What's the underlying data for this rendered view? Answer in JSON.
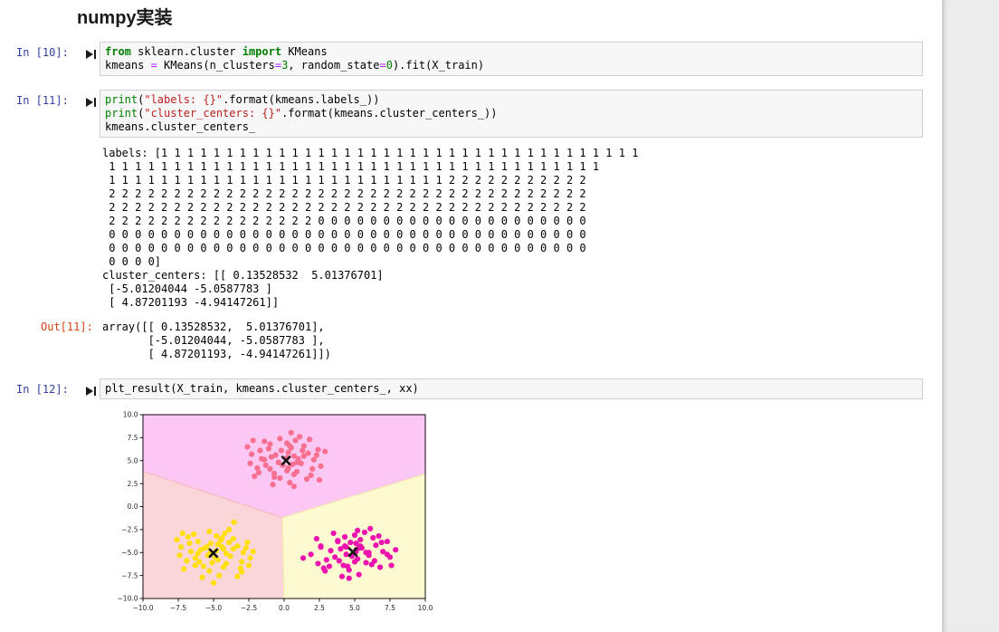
{
  "page": {
    "heading": "numpy実装"
  },
  "cells": [
    {
      "prompt": "In [10]:",
      "lines": [
        [
          [
            "kw",
            "from"
          ],
          [
            "pl",
            " sklearn.cluster "
          ],
          [
            "kw",
            "import"
          ],
          [
            "pl",
            " KMeans"
          ]
        ],
        [
          [
            "pl",
            "kmeans "
          ],
          [
            "op",
            "="
          ],
          [
            "pl",
            " KMeans(n_clusters"
          ],
          [
            "op",
            "="
          ],
          [
            "num",
            "3"
          ],
          [
            "pl",
            ", random_state"
          ],
          [
            "op",
            "="
          ],
          [
            "num",
            "0"
          ],
          [
            "pl",
            ").fit(X_train)"
          ]
        ]
      ]
    },
    {
      "prompt": "In [11]:",
      "lines": [
        [
          [
            "bi",
            "print"
          ],
          [
            "pl",
            "("
          ],
          [
            "str",
            "\"labels: {}\""
          ],
          [
            "pl",
            ".format(kmeans.labels_))"
          ]
        ],
        [
          [
            "bi",
            "print"
          ],
          [
            "pl",
            "("
          ],
          [
            "str",
            "\"cluster_centers: {}\""
          ],
          [
            "pl",
            ".format(kmeans.cluster_centers_))"
          ]
        ],
        [
          [
            "pl",
            "kmeans.cluster_centers_"
          ]
        ]
      ]
    },
    {
      "prompt": "In [12]:",
      "lines": [
        [
          [
            "pl",
            "plt_result(X_train, kmeans.cluster_centers_, xx)"
          ]
        ]
      ]
    }
  ],
  "outputs": {
    "stream": [
      "labels: [1 1 1 1 1 1 1 1 1 1 1 1 1 1 1 1 1 1 1 1 1 1 1 1 1 1 1 1 1 1 1 1 1 1 1 1 1",
      " 1 1 1 1 1 1 1 1 1 1 1 1 1 1 1 1 1 1 1 1 1 1 1 1 1 1 1 1 1 1 1 1 1 1 1 1 1 1",
      " 1 1 1 1 1 1 1 1 1 1 1 1 1 1 1 1 1 1 1 1 1 1 1 1 1 1 2 2 2 2 2 2 2 2 2 2 2",
      " 2 2 2 2 2 2 2 2 2 2 2 2 2 2 2 2 2 2 2 2 2 2 2 2 2 2 2 2 2 2 2 2 2 2 2 2 2",
      " 2 2 2 2 2 2 2 2 2 2 2 2 2 2 2 2 2 2 2 2 2 2 2 2 2 2 2 2 2 2 2 2 2 2 2 2 2",
      " 2 2 2 2 2 2 2 2 2 2 2 2 2 2 2 2 0 0 0 0 0 0 0 0 0 0 0 0 0 0 0 0 0 0 0 0 0",
      " 0 0 0 0 0 0 0 0 0 0 0 0 0 0 0 0 0 0 0 0 0 0 0 0 0 0 0 0 0 0 0 0 0 0 0 0 0",
      " 0 0 0 0 0 0 0 0 0 0 0 0 0 0 0 0 0 0 0 0 0 0 0 0 0 0 0 0 0 0 0 0 0 0 0 0 0",
      " 0 0 0 0]",
      "cluster_centers: [[ 0.13528532  5.01376701]",
      " [-5.01204044 -5.0587783 ]",
      " [ 4.87201193 -4.94147261]]"
    ],
    "out_prompt": "Out[11]:",
    "out_value": [
      "array([[ 0.13528532,  5.01376701],",
      "       [-5.01204044, -5.0587783 ],",
      "       [ 4.87201193, -4.94147261]])"
    ]
  },
  "chart_data": {
    "type": "scatter",
    "xlim": [
      -10,
      10
    ],
    "ylim": [
      -10,
      10
    ],
    "xticks": [
      -10,
      -7.5,
      -5,
      -2.5,
      0,
      2.5,
      5,
      7.5,
      10
    ],
    "yticks": [
      -10,
      -7.5,
      -5,
      -2.5,
      0,
      2.5,
      5,
      7.5,
      10
    ],
    "xtick_labels": [
      "−10.0",
      "−7.5",
      "−5.0",
      "−2.5",
      "0.0",
      "2.5",
      "5.0",
      "7.5",
      "10.0"
    ],
    "ytick_labels": [
      "−10.0",
      "−7.5",
      "−5.0",
      "−2.5",
      "0.0",
      "2.5",
      "5.0",
      "7.5",
      "10.0"
    ],
    "grid": false,
    "regions": [
      {
        "name": "decision-region-top",
        "fill": "#fbc7f3",
        "stroke": "#f7a9e4",
        "points": [
          [
            -10,
            10
          ],
          [
            10,
            10
          ],
          [
            10,
            3.55
          ],
          [
            -0.116,
            -1.208
          ],
          [
            -10,
            3.84
          ]
        ]
      },
      {
        "name": "decision-region-bottom-left",
        "fill": "#fad6d8",
        "stroke": "#f5bdc2",
        "points": [
          [
            -10,
            3.84
          ],
          [
            -0.116,
            -1.208
          ],
          [
            -0.011,
            -10
          ],
          [
            -10,
            -10
          ]
        ]
      },
      {
        "name": "decision-region-bottom-right",
        "fill": "#fdfad2",
        "stroke": "#f3ecae",
        "points": [
          [
            10,
            3.55
          ],
          [
            -0.116,
            -1.208
          ],
          [
            -0.011,
            -10
          ],
          [
            10,
            -10
          ]
        ]
      }
    ],
    "series": [
      {
        "name": "cluster-top",
        "color": "#f7708f",
        "points": [
          [
            0.2,
            5.3
          ],
          [
            -0.4,
            4.8
          ],
          [
            0.7,
            5.5
          ],
          [
            -0.9,
            5.4
          ],
          [
            0.3,
            4.2
          ],
          [
            -0.2,
            6.1
          ],
          [
            1.2,
            4.7
          ],
          [
            -1.3,
            4.5
          ],
          [
            0.5,
            6.4
          ],
          [
            0.9,
            3.8
          ],
          [
            -1.6,
            5.2
          ],
          [
            1.7,
            5.8
          ],
          [
            -0.7,
            3.6
          ],
          [
            0.2,
            6.9
          ],
          [
            -1.1,
            6.3
          ],
          [
            1.4,
            6.6
          ],
          [
            -1.9,
            4.2
          ],
          [
            2.1,
            5.1
          ],
          [
            -0.3,
            3.1
          ],
          [
            0.8,
            7.2
          ],
          [
            -2.3,
            5.7
          ],
          [
            1.9,
            3.4
          ],
          [
            -1.4,
            7.1
          ],
          [
            2.4,
            6.2
          ],
          [
            -2.1,
            3.3
          ],
          [
            0.4,
            2.6
          ],
          [
            2.6,
            4.4
          ],
          [
            -2.6,
            6.5
          ],
          [
            1.1,
            7.6
          ],
          [
            -0.8,
            2.4
          ],
          [
            0.3,
            5.9
          ],
          [
            -0.6,
            5.6
          ],
          [
            0.9,
            4.8
          ],
          [
            -1.0,
            4.1
          ],
          [
            1.4,
            5.5
          ],
          [
            0.7,
            3.5
          ],
          [
            -1.7,
            6.1
          ],
          [
            2.0,
            4.1
          ],
          [
            -0.3,
            7.4
          ],
          [
            0.6,
            4.6
          ],
          [
            -1.0,
            6.8
          ],
          [
            1.3,
            6.1
          ],
          [
            -1.8,
            3.7
          ],
          [
            2.3,
            5.6
          ],
          [
            -2.4,
            4.7
          ],
          [
            0.2,
            3.9
          ],
          [
            1.6,
            3.0
          ],
          [
            -1.4,
            5.1
          ],
          [
            0.4,
            6.6
          ],
          [
            -0.7,
            3.2
          ],
          [
            2.9,
            6.0
          ],
          [
            -0.1,
            4.5
          ],
          [
            1.0,
            5.2
          ],
          [
            -2.2,
            7.2
          ],
          [
            1.8,
            7.3
          ],
          [
            0.5,
            8.05
          ],
          [
            0.7,
            2.2
          ],
          [
            2.5,
            2.9
          ]
        ]
      },
      {
        "name": "cluster-bottom-left",
        "color": "#ffdf0f",
        "points": [
          [
            -4.8,
            -4.8
          ],
          [
            -5.4,
            -5.3
          ],
          [
            -4.3,
            -4.6
          ],
          [
            -5.9,
            -4.7
          ],
          [
            -4.7,
            -5.8
          ],
          [
            -5.2,
            -4.0
          ],
          [
            -3.8,
            -5.4
          ],
          [
            -6.3,
            -5.6
          ],
          [
            -4.5,
            -3.7
          ],
          [
            -4.1,
            -6.2
          ],
          [
            -6.6,
            -4.9
          ],
          [
            -3.3,
            -4.3
          ],
          [
            -5.7,
            -6.5
          ],
          [
            -4.8,
            -3.2
          ],
          [
            -6.1,
            -3.8
          ],
          [
            -3.6,
            -3.5
          ],
          [
            -6.9,
            -5.9
          ],
          [
            -2.9,
            -5.0
          ],
          [
            -5.3,
            -7.0
          ],
          [
            -4.2,
            -2.9
          ],
          [
            -7.3,
            -4.4
          ],
          [
            -3.1,
            -6.7
          ],
          [
            -6.4,
            -3.0
          ],
          [
            -2.6,
            -3.9
          ],
          [
            -7.1,
            -6.8
          ],
          [
            -4.6,
            -7.5
          ],
          [
            -2.4,
            -5.6
          ],
          [
            -7.6,
            -3.6
          ],
          [
            -3.9,
            -2.5
          ],
          [
            -5.8,
            -7.7
          ],
          [
            -4.7,
            -4.1
          ],
          [
            -5.6,
            -4.5
          ],
          [
            -4.1,
            -5.1
          ],
          [
            -6.0,
            -6.0
          ],
          [
            -3.6,
            -4.6
          ],
          [
            -4.3,
            -6.6
          ],
          [
            -6.7,
            -4.0
          ],
          [
            -3.0,
            -6.0
          ],
          [
            -5.3,
            -2.7
          ],
          [
            -4.4,
            -4.4
          ],
          [
            -6.8,
            -3.3
          ],
          [
            -3.9,
            -3.9
          ],
          [
            -6.3,
            -6.4
          ],
          [
            -2.7,
            -4.5
          ],
          [
            -7.4,
            -5.3
          ],
          [
            -5.1,
            -6.1
          ],
          [
            -3.0,
            -7.1
          ],
          [
            -5.2,
            -5.0
          ],
          [
            -4.4,
            -3.4
          ],
          [
            -6.1,
            -5.1
          ],
          [
            -2.2,
            -4.9
          ],
          [
            -5.5,
            -4.4
          ],
          [
            -4.9,
            -5.5
          ],
          [
            -7.2,
            -2.9
          ],
          [
            -3.3,
            -7.6
          ],
          [
            -3.55,
            -1.7
          ],
          [
            -5.0,
            -8.3
          ],
          [
            -2.5,
            -6.4
          ]
        ]
      },
      {
        "name": "cluster-bottom-right",
        "color": "#ec13ae",
        "points": [
          [
            5.1,
            -4.7
          ],
          [
            4.4,
            -5.2
          ],
          [
            5.5,
            -4.5
          ],
          [
            4.0,
            -4.6
          ],
          [
            5.2,
            -5.7
          ],
          [
            4.7,
            -3.9
          ],
          [
            6.0,
            -5.3
          ],
          [
            3.6,
            -5.5
          ],
          [
            5.4,
            -3.6
          ],
          [
            5.8,
            -6.1
          ],
          [
            3.3,
            -4.8
          ],
          [
            6.5,
            -4.2
          ],
          [
            4.2,
            -6.4
          ],
          [
            5.0,
            -3.1
          ],
          [
            3.8,
            -3.7
          ],
          [
            6.3,
            -3.4
          ],
          [
            3.0,
            -5.8
          ],
          [
            7.0,
            -4.9
          ],
          [
            4.6,
            -6.9
          ],
          [
            5.7,
            -2.8
          ],
          [
            2.6,
            -4.3
          ],
          [
            6.8,
            -6.6
          ],
          [
            3.5,
            -2.9
          ],
          [
            7.3,
            -3.8
          ],
          [
            2.8,
            -6.7
          ],
          [
            5.3,
            -7.4
          ],
          [
            7.5,
            -5.5
          ],
          [
            2.3,
            -3.5
          ],
          [
            6.1,
            -2.4
          ],
          [
            4.1,
            -7.6
          ],
          [
            5.1,
            -4.0
          ],
          [
            4.4,
            -4.4
          ],
          [
            5.8,
            -5.0
          ],
          [
            3.9,
            -5.9
          ],
          [
            5.3,
            -4.5
          ],
          [
            4.5,
            -6.5
          ],
          [
            6.9,
            -3.9
          ],
          [
            5.2,
            -2.6
          ],
          [
            4.3,
            -4.3
          ],
          [
            6.7,
            -3.2
          ],
          [
            3.8,
            -3.8
          ],
          [
            6.2,
            -6.3
          ],
          [
            2.6,
            -4.4
          ],
          [
            7.3,
            -5.2
          ],
          [
            5.0,
            -6.0
          ],
          [
            2.9,
            -7.0
          ],
          [
            5.1,
            -4.9
          ],
          [
            4.3,
            -3.3
          ],
          [
            6.0,
            -5.0
          ],
          [
            7.9,
            -4.7
          ],
          [
            5.4,
            -4.3
          ],
          [
            4.8,
            -5.4
          ],
          [
            1.35,
            -5.6
          ],
          [
            1.9,
            -5.2
          ],
          [
            2.4,
            -6.2
          ],
          [
            3.2,
            -6.5
          ],
          [
            4.6,
            -7.8
          ],
          [
            6.4,
            -5.9
          ],
          [
            7.6,
            -6.4
          ]
        ]
      }
    ],
    "centers": {
      "marker": "x",
      "color": "#151515",
      "points": [
        [
          0.13528532,
          5.01376701
        ],
        [
          -5.01204044,
          -5.0587783
        ],
        [
          4.87201193,
          -4.94147261
        ]
      ]
    }
  }
}
